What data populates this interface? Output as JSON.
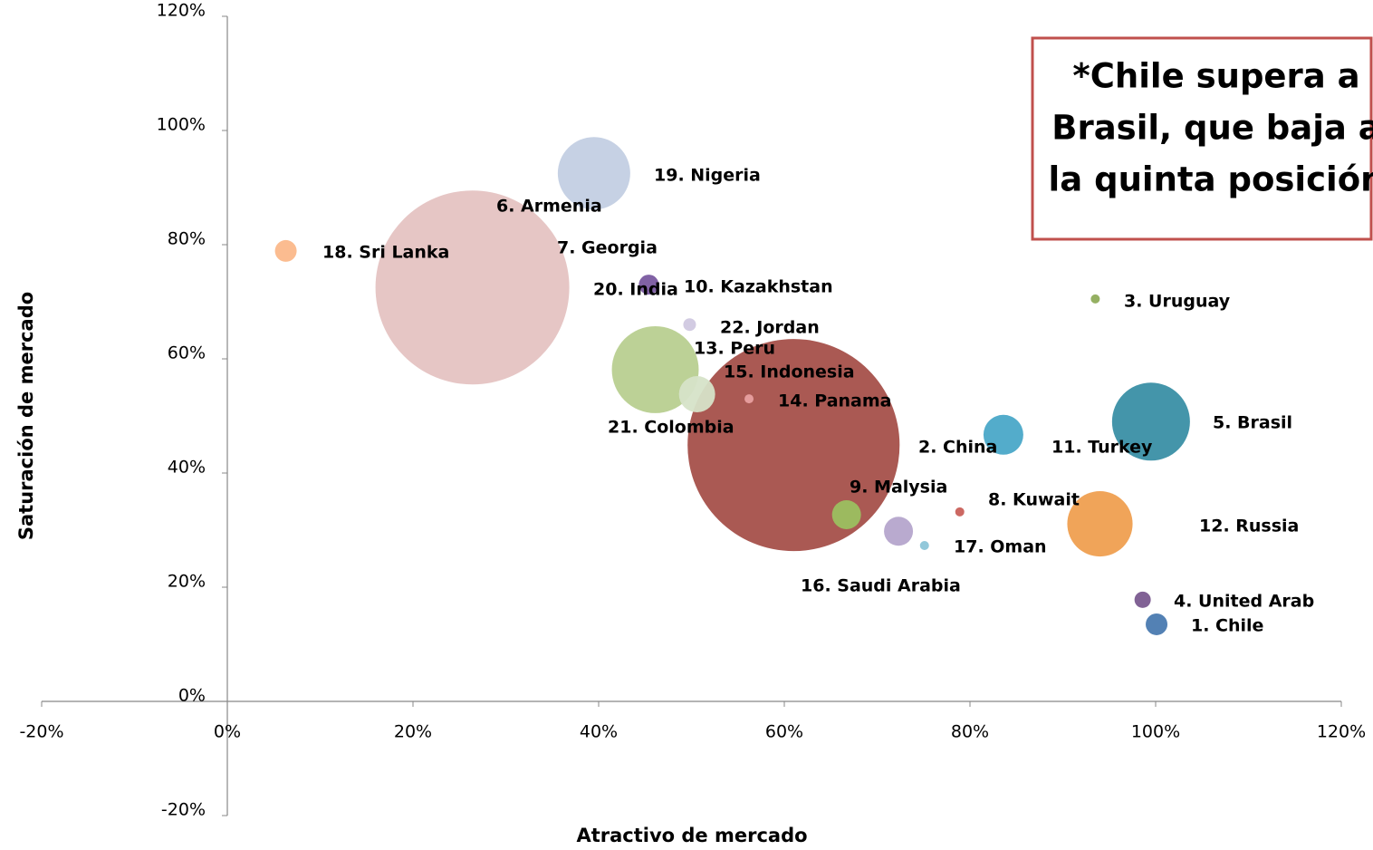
{
  "chart_data": {
    "type": "bubble",
    "annotation": [
      "*Chile supera a",
      "Brasil, que baja a",
      "la quinta posición"
    ],
    "xlabel": "Atractivo de mercado",
    "ylabel": "Saturación de mercado",
    "xlim": [
      -20,
      120
    ],
    "ylim": [
      -20,
      120
    ],
    "xticks": [
      {
        "value": -20,
        "label": "-20%"
      },
      {
        "value": 0,
        "label": "0%"
      },
      {
        "value": 20,
        "label": "20%"
      },
      {
        "value": 40,
        "label": "40%"
      },
      {
        "value": 60,
        "label": "60%"
      },
      {
        "value": 80,
        "label": "80%"
      },
      {
        "value": 100,
        "label": "100%"
      },
      {
        "value": 120,
        "label": "120%"
      }
    ],
    "yticks": [
      {
        "value": -20,
        "label": "-20%"
      },
      {
        "value": 0,
        "label": "0%"
      },
      {
        "value": 20,
        "label": "20%"
      },
      {
        "value": 40,
        "label": "40%"
      },
      {
        "value": 60,
        "label": "60%"
      },
      {
        "value": 80,
        "label": "80%"
      },
      {
        "value": 100,
        "label": "100%"
      },
      {
        "value": 120,
        "label": "120%"
      }
    ],
    "labels": [
      "1. Chile",
      "2. China",
      "3. Uruguay",
      "4. United Arab",
      "5. Brasil",
      "6. Armenia",
      "7. Georgia",
      "8. Kuwait",
      "9. Malysia",
      "10. Kazakhstan",
      "11. Turkey",
      "12. Russia",
      "13. Peru",
      "14. Panama",
      "15. Indonesia",
      "16. Saudi Arabia",
      "17. Oman",
      "18. Sri Lanka",
      "19. Nigeria",
      "20. India",
      "21. Colombia",
      "22. Jordan"
    ],
    "x": [
      100.1,
      83.6,
      93.5,
      98.6,
      99.5,
      26.4,
      36,
      78.9,
      66.7,
      49,
      92,
      94,
      50.6,
      56.2,
      61,
      72.3,
      75.1,
      6.3,
      39.5,
      45.4,
      46.1,
      49.8
    ],
    "values": [
      13.5,
      46.7,
      70.5,
      17.8,
      49,
      72.5,
      79,
      33.2,
      32.7,
      73,
      46,
      31.1,
      53.8,
      53,
      44.9,
      29.8,
      27.3,
      78.9,
      92.5,
      73,
      58.1,
      66
    ],
    "sizes": [
      1.44,
      4.84,
      0.25,
      0.81,
      18.5,
      114.5,
      0,
      0.25,
      2.56,
      0,
      0,
      13,
      4,
      0.25,
      137,
      2.56,
      0.25,
      1.44,
      16,
      1.21,
      23,
      0.49
    ],
    "colors": [
      "#4a7ab0",
      "#4aa8c8",
      "#8fac5a",
      "#7a5a8f",
      "#3a8fa5",
      "#e5c3c2",
      "#a0a0a0",
      "#c9605a",
      "#9bc060",
      "#a0a0a0",
      "#a0a0a0",
      "#ef9f50",
      "#d6e3c8",
      "#e8a0a0",
      "#a5504a",
      "#b5a5cc",
      "#8cc5d8",
      "#fbb88a",
      "#c3cfe3",
      "#7a5aa0",
      "#b8cf90",
      "#d0c8e0"
    ]
  }
}
